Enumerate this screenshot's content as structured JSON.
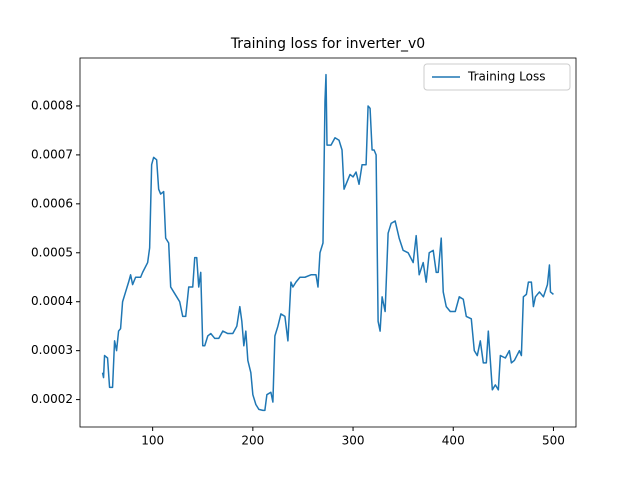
{
  "chart_data": {
    "type": "line",
    "title": "Training loss for inverter_v0",
    "x": [
      50,
      51,
      52,
      55,
      57,
      60,
      62,
      64,
      66,
      68,
      70,
      73,
      76,
      78,
      80,
      83,
      88,
      90,
      95,
      97,
      99,
      101,
      104,
      106,
      108,
      111,
      113,
      116,
      118,
      121,
      124,
      127,
      130,
      133,
      136,
      140,
      142,
      144,
      146,
      148,
      150,
      152,
      155,
      158,
      162,
      166,
      170,
      175,
      180,
      184,
      187,
      189,
      191,
      193,
      195,
      198,
      200,
      203,
      206,
      210,
      212,
      214,
      218,
      220,
      222,
      225,
      228,
      232,
      235,
      238,
      240,
      243,
      247,
      252,
      258,
      263,
      265,
      267,
      270,
      272,
      273,
      274,
      278,
      282,
      286,
      289,
      291,
      294,
      297,
      300,
      303,
      306,
      309,
      313,
      315,
      317,
      319,
      321,
      323,
      325,
      327,
      329,
      332,
      335,
      338,
      342,
      346,
      350,
      355,
      360,
      363,
      366,
      370,
      373,
      376,
      380,
      383,
      385,
      388,
      390,
      393,
      397,
      402,
      406,
      410,
      413,
      418,
      421,
      424,
      427,
      430,
      433,
      435,
      437,
      439,
      442,
      445,
      447,
      452,
      456,
      458,
      461,
      466,
      468,
      470,
      473,
      475,
      478,
      480,
      482,
      486,
      490,
      494,
      496,
      497,
      500
    ],
    "series": [
      {
        "name": "Training Loss",
        "color": "#1f77b4",
        "values": [
          0.000255,
          0.000245,
          0.00029,
          0.000285,
          0.000225,
          0.000225,
          0.00032,
          0.0003,
          0.00034,
          0.000345,
          0.0004,
          0.00042,
          0.00044,
          0.000455,
          0.000435,
          0.00045,
          0.00045,
          0.00046,
          0.00048,
          0.00051,
          0.00068,
          0.000695,
          0.00069,
          0.00063,
          0.00062,
          0.000625,
          0.00053,
          0.00052,
          0.00043,
          0.00042,
          0.00041,
          0.0004,
          0.00037,
          0.00037,
          0.00043,
          0.00043,
          0.00049,
          0.00049,
          0.00043,
          0.00046,
          0.00031,
          0.00031,
          0.00033,
          0.000335,
          0.000325,
          0.000325,
          0.00034,
          0.000335,
          0.000335,
          0.00035,
          0.00039,
          0.00036,
          0.00031,
          0.00034,
          0.00028,
          0.000255,
          0.00021,
          0.00019,
          0.00018,
          0.000178,
          0.000178,
          0.00021,
          0.000215,
          0.000195,
          0.00033,
          0.00035,
          0.000375,
          0.00037,
          0.00032,
          0.00044,
          0.00043,
          0.00044,
          0.00045,
          0.00045,
          0.000455,
          0.000455,
          0.00043,
          0.0005,
          0.00052,
          0.00081,
          0.000864,
          0.00072,
          0.00072,
          0.000735,
          0.00073,
          0.00071,
          0.00063,
          0.000645,
          0.00066,
          0.000655,
          0.000665,
          0.00064,
          0.00068,
          0.00068,
          0.0008,
          0.000795,
          0.00071,
          0.00071,
          0.0007,
          0.00036,
          0.00034,
          0.00041,
          0.00038,
          0.00054,
          0.00056,
          0.000565,
          0.00053,
          0.000505,
          0.0005,
          0.00048,
          0.000535,
          0.000455,
          0.00048,
          0.00044,
          0.0005,
          0.000505,
          0.00046,
          0.00046,
          0.00053,
          0.00042,
          0.00039,
          0.00038,
          0.00038,
          0.00041,
          0.000405,
          0.00037,
          0.000365,
          0.0003,
          0.00029,
          0.00032,
          0.000275,
          0.000275,
          0.00034,
          0.00028,
          0.00022,
          0.00023,
          0.00022,
          0.00029,
          0.000285,
          0.0003,
          0.000275,
          0.00028,
          0.0003,
          0.00029,
          0.00041,
          0.000415,
          0.00044,
          0.00044,
          0.00039,
          0.00041,
          0.00042,
          0.00041,
          0.000435,
          0.000475,
          0.00042,
          0.000415
        ]
      }
    ],
    "xlim": [
      27.5,
      522.5
    ],
    "xticks": [
      100,
      200,
      300,
      400,
      500
    ],
    "ylim": [
      0.000144,
      0.000898
    ],
    "yticks": [
      0.0002,
      0.0003,
      0.0004,
      0.0005,
      0.0006,
      0.0007,
      0.0008
    ],
    "legend": "upper right"
  }
}
